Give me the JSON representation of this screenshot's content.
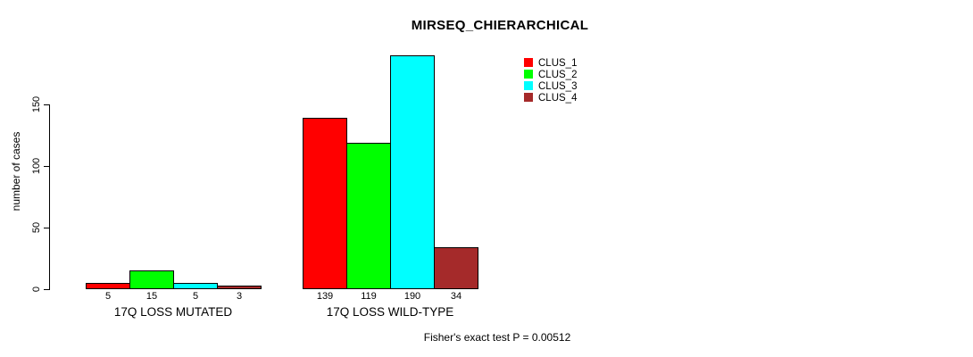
{
  "chart_data": {
    "type": "bar",
    "title": "MIRSEQ_CHIERARCHICAL",
    "ylabel": "number of cases",
    "xlabel": "",
    "ylim": [
      0,
      190
    ],
    "yticks": [
      0,
      50,
      100,
      150
    ],
    "grid": false,
    "legend_position": "top-right-inside",
    "categories": [
      "17Q LOSS MUTATED",
      "17Q LOSS WILD-TYPE"
    ],
    "series": [
      {
        "name": "CLUS_1",
        "color": "#ff0000",
        "values": [
          5,
          139
        ]
      },
      {
        "name": "CLUS_2",
        "color": "#00ff00",
        "values": [
          15,
          119
        ]
      },
      {
        "name": "CLUS_3",
        "color": "#00ffff",
        "values": [
          5,
          190
        ]
      },
      {
        "name": "CLUS_4",
        "color": "#a52a2a",
        "values": [
          3,
          34
        ]
      }
    ],
    "bar_value_labels": [
      [
        "5",
        "15",
        "5",
        "3"
      ],
      [
        "139",
        "119",
        "190",
        "34"
      ]
    ],
    "annotation": "Fisher's exact test P = 0.00512"
  }
}
